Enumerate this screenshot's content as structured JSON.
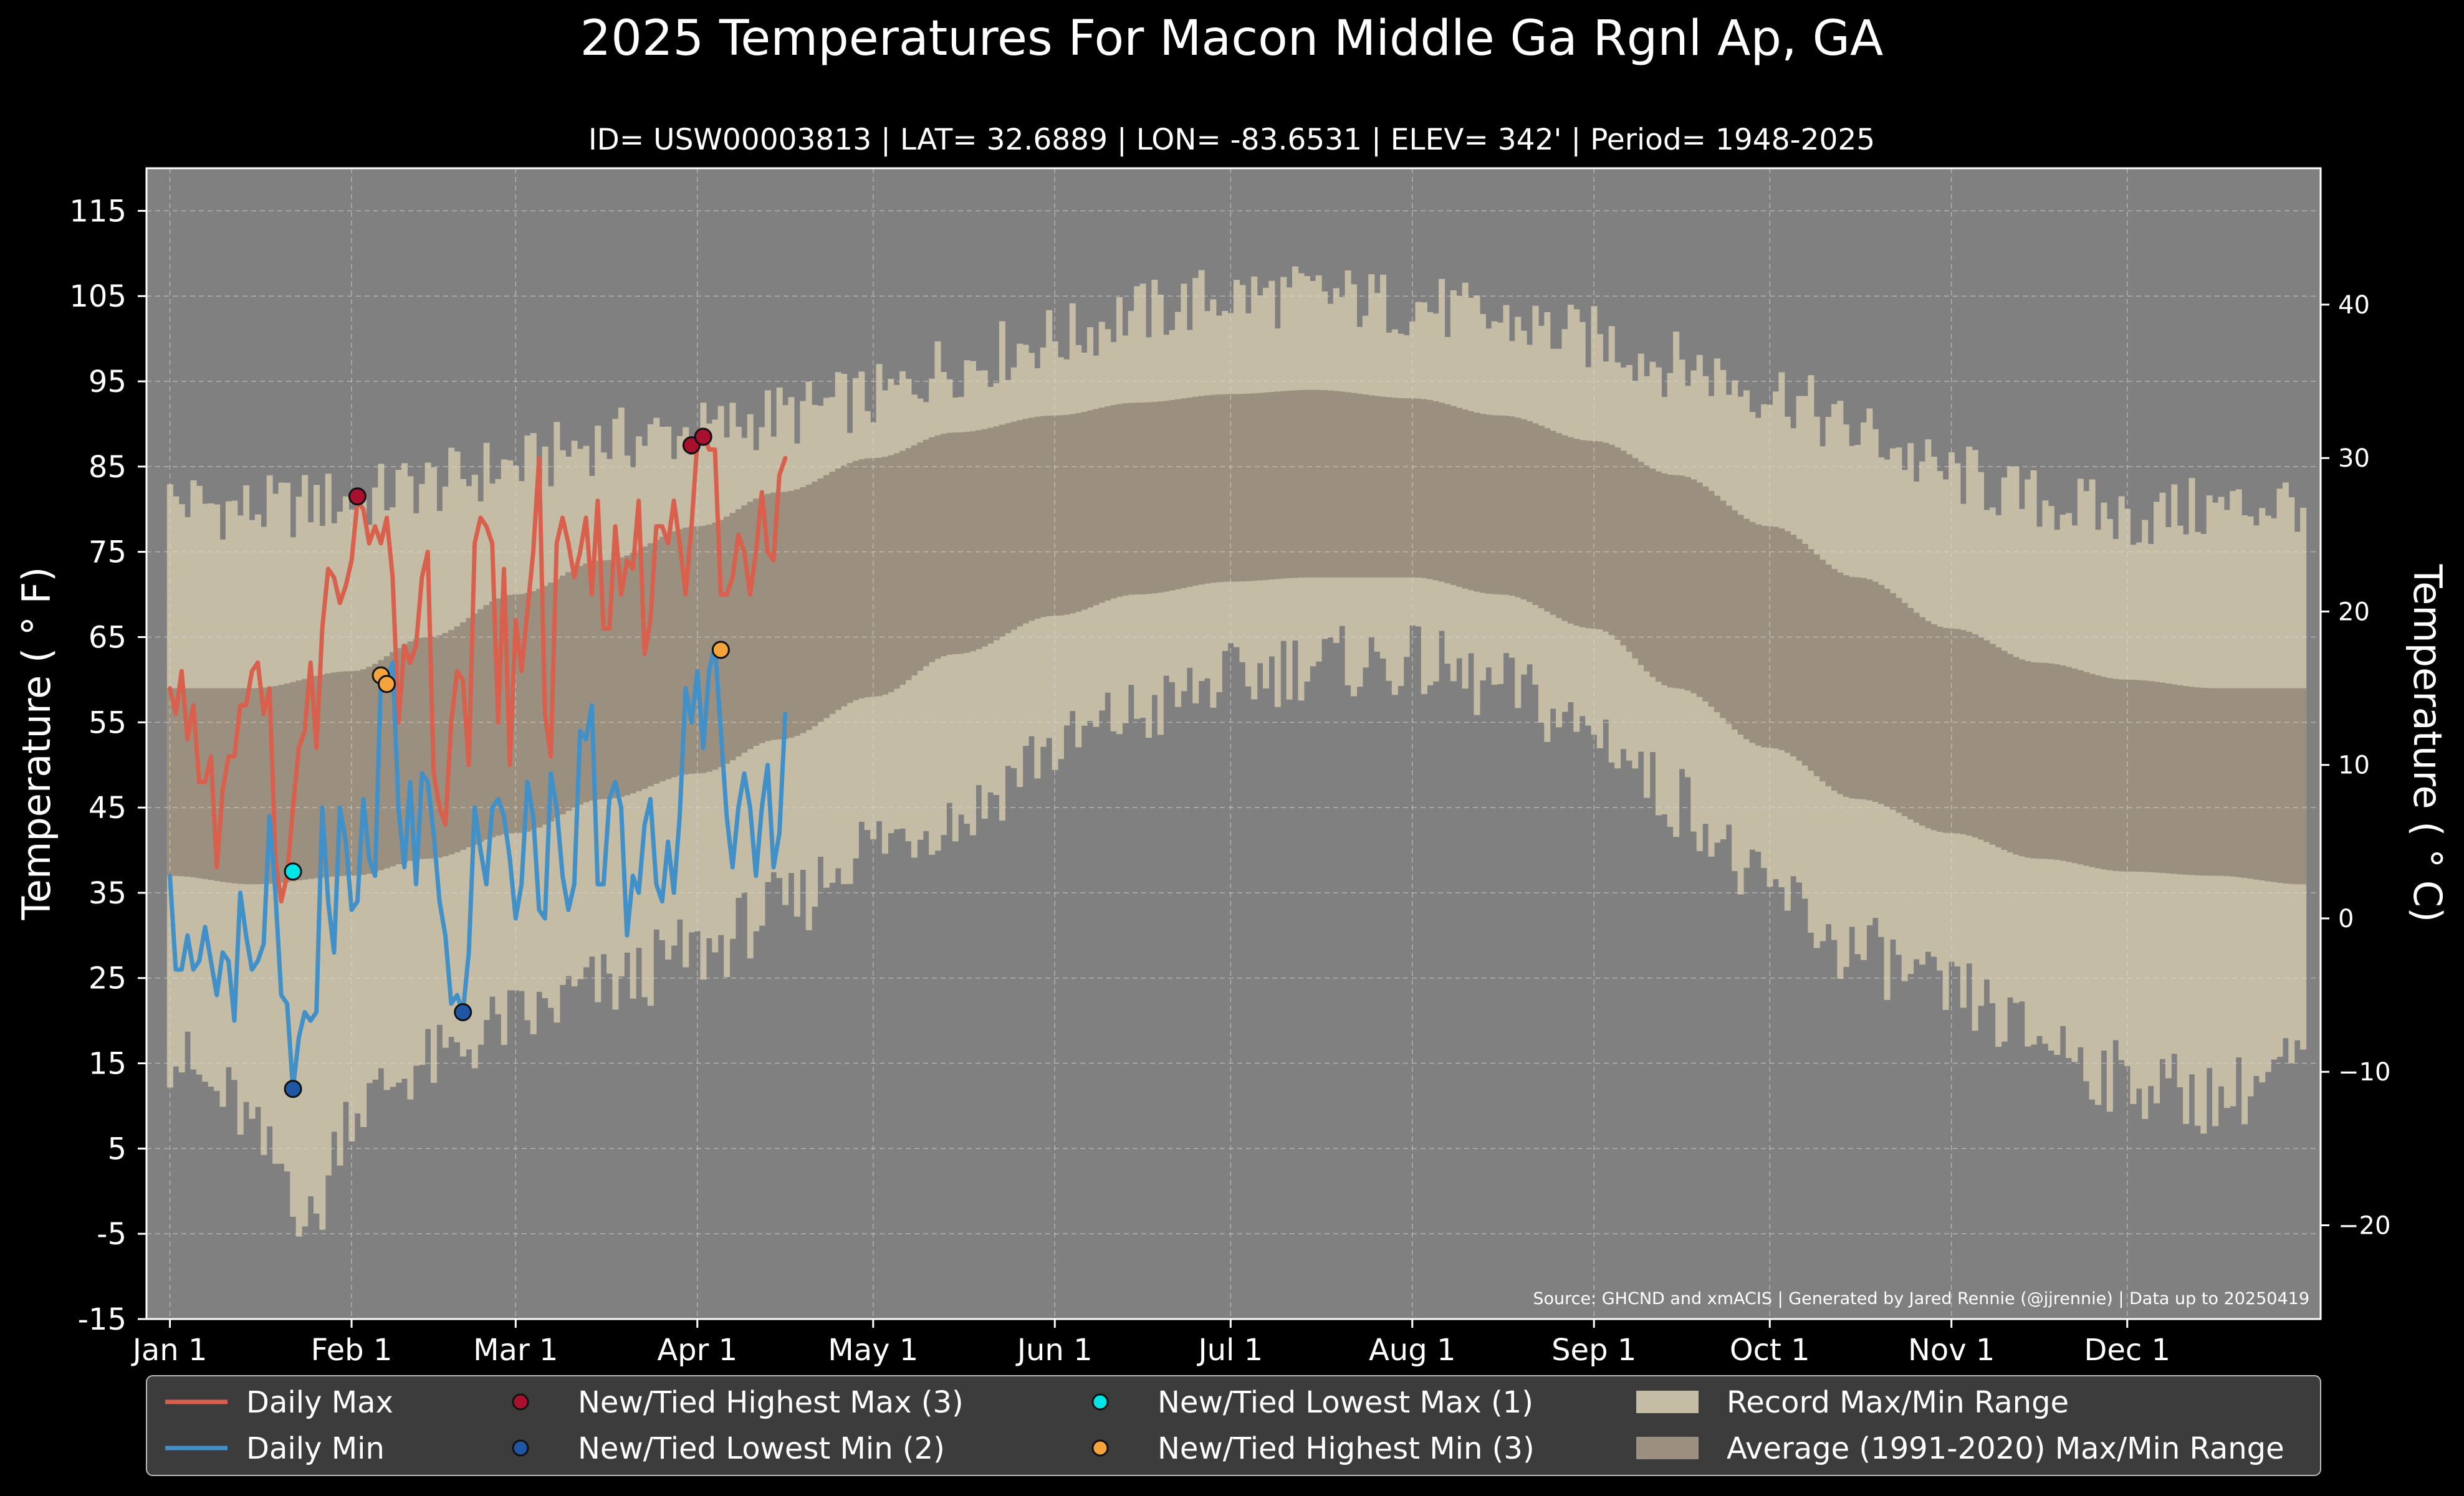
{
  "chart_data": {
    "type": "line",
    "title": "2025 Temperatures For Macon Middle Ga Rgnl Ap, GA",
    "subtitle": "ID= USW00003813 | LAT= 32.6889 | LON= -83.6531 | ELEV= 342' | Period= 1948-2025",
    "ylabel_left": "Temperature ($^\\circ$F)",
    "ylabel_left_text": "Temperature ( ° F)",
    "ylabel_right_text": "Temperature ( ° C)",
    "source_note": "Source: GHCND and xmACIS | Generated by Jared Rennie (@jjrennie) | Data up to 20250419",
    "ylim_f": [
      -15,
      120
    ],
    "yticks_f": [
      -15,
      -5,
      5,
      15,
      25,
      35,
      45,
      55,
      65,
      75,
      85,
      95,
      105,
      115
    ],
    "yticks_c": [
      -20,
      -10,
      0,
      10,
      20,
      30,
      40
    ],
    "xlim_day": [
      -3,
      368
    ],
    "xticks": [
      {
        "day": 1,
        "label": "Jan 1"
      },
      {
        "day": 32,
        "label": "Feb 1"
      },
      {
        "day": 60,
        "label": "Mar 1"
      },
      {
        "day": 91,
        "label": "Apr 1"
      },
      {
        "day": 121,
        "label": "May 1"
      },
      {
        "day": 152,
        "label": "Jun 1"
      },
      {
        "day": 182,
        "label": "Jul 1"
      },
      {
        "day": 213,
        "label": "Aug 1"
      },
      {
        "day": 244,
        "label": "Sep 1"
      },
      {
        "day": 274,
        "label": "Oct 1"
      },
      {
        "day": 305,
        "label": "Nov 1"
      },
      {
        "day": 335,
        "label": "Dec 1"
      }
    ],
    "grid": true,
    "legend_position": "bottom",
    "colors": {
      "background": "#000000",
      "plot_bg": "#808080",
      "record_band": "#c4bca4",
      "normal_band": "#9b9080",
      "daily_max": "#d9604c",
      "daily_min": "#4190c8",
      "rec_high_max": "#a8102e",
      "rec_low_min": "#1f57a5",
      "rec_low_max": "#00e6e6",
      "rec_high_min": "#f4a43a",
      "legend_bg": "#3c3c3c"
    },
    "record_max_anchors": [
      [
        1,
        81
      ],
      [
        15,
        80
      ],
      [
        32,
        81
      ],
      [
        45,
        83
      ],
      [
        60,
        85
      ],
      [
        75,
        88
      ],
      [
        91,
        89
      ],
      [
        105,
        91
      ],
      [
        121,
        93
      ],
      [
        135,
        97
      ],
      [
        152,
        100
      ],
      [
        166,
        103
      ],
      [
        182,
        105
      ],
      [
        196,
        105
      ],
      [
        213,
        104
      ],
      [
        228,
        102
      ],
      [
        244,
        100
      ],
      [
        258,
        97
      ],
      [
        274,
        94
      ],
      [
        289,
        89
      ],
      [
        305,
        84
      ],
      [
        320,
        81
      ],
      [
        335,
        79
      ],
      [
        350,
        80
      ],
      [
        365,
        81
      ]
    ],
    "record_min_anchors": [
      [
        1,
        16
      ],
      [
        10,
        11
      ],
      [
        20,
        3
      ],
      [
        25,
        -4
      ],
      [
        32,
        10
      ],
      [
        45,
        15
      ],
      [
        60,
        20
      ],
      [
        75,
        24
      ],
      [
        91,
        28
      ],
      [
        105,
        33
      ],
      [
        121,
        41
      ],
      [
        135,
        44
      ],
      [
        152,
        52
      ],
      [
        166,
        56
      ],
      [
        182,
        60
      ],
      [
        196,
        62
      ],
      [
        213,
        62
      ],
      [
        228,
        59
      ],
      [
        244,
        54
      ],
      [
        258,
        46
      ],
      [
        274,
        35
      ],
      [
        289,
        28
      ],
      [
        305,
        23
      ],
      [
        320,
        18
      ],
      [
        335,
        13
      ],
      [
        350,
        11
      ],
      [
        365,
        15
      ]
    ],
    "normal_max_anchors": [
      [
        1,
        59
      ],
      [
        15,
        59
      ],
      [
        32,
        61
      ],
      [
        45,
        65
      ],
      [
        60,
        70
      ],
      [
        75,
        74
      ],
      [
        91,
        78
      ],
      [
        105,
        82
      ],
      [
        121,
        86
      ],
      [
        135,
        89
      ],
      [
        152,
        91
      ],
      [
        166,
        92.5
      ],
      [
        182,
        93.5
      ],
      [
        196,
        94
      ],
      [
        213,
        93
      ],
      [
        228,
        91
      ],
      [
        244,
        88
      ],
      [
        258,
        84
      ],
      [
        274,
        78
      ],
      [
        289,
        72
      ],
      [
        305,
        66
      ],
      [
        320,
        62
      ],
      [
        335,
        60
      ],
      [
        350,
        59
      ],
      [
        365,
        59
      ]
    ],
    "normal_min_anchors": [
      [
        1,
        37
      ],
      [
        15,
        36
      ],
      [
        32,
        37
      ],
      [
        45,
        39
      ],
      [
        60,
        42
      ],
      [
        75,
        46
      ],
      [
        91,
        49
      ],
      [
        105,
        53
      ],
      [
        121,
        58
      ],
      [
        135,
        63
      ],
      [
        152,
        67.5
      ],
      [
        166,
        70
      ],
      [
        182,
        71.5
      ],
      [
        196,
        72
      ],
      [
        213,
        72
      ],
      [
        228,
        70
      ],
      [
        244,
        66
      ],
      [
        258,
        59
      ],
      [
        274,
        52
      ],
      [
        289,
        46
      ],
      [
        305,
        42
      ],
      [
        320,
        39
      ],
      [
        335,
        37.5
      ],
      [
        350,
        37
      ],
      [
        365,
        36
      ]
    ],
    "series": [
      {
        "name": "Daily Max",
        "color": "#d9604c",
        "start_day": 1,
        "values": [
          59,
          56,
          61,
          53,
          57,
          48,
          48,
          51,
          38,
          47,
          51,
          51,
          57,
          57,
          61,
          62,
          56,
          59,
          39,
          34,
          37,
          45,
          52,
          54,
          62,
          52,
          66,
          73,
          72,
          69,
          71,
          74,
          81,
          80,
          76,
          78,
          76,
          79,
          72,
          55,
          64,
          62,
          64,
          72,
          75,
          49,
          45,
          43,
          55,
          61,
          60,
          50,
          76,
          79,
          78,
          76,
          55,
          73,
          50,
          67,
          61,
          68,
          75,
          86,
          56,
          51,
          76,
          79,
          76,
          72,
          75,
          79,
          70,
          81,
          66,
          66,
          78,
          70,
          74,
          73,
          81,
          63,
          67,
          78,
          78,
          76,
          81,
          76,
          70,
          78,
          88,
          89,
          87,
          87,
          70,
          70,
          72,
          77,
          75,
          70,
          75,
          82,
          75,
          74,
          84,
          86
        ]
      },
      {
        "name": "Daily Min",
        "color": "#4190c8",
        "start_day": 1,
        "values": [
          37,
          26,
          26,
          30,
          26,
          27,
          31,
          27,
          23,
          28,
          27,
          20,
          35,
          30,
          26,
          27,
          29,
          44,
          35,
          23,
          22,
          12,
          18,
          21,
          20,
          21,
          45,
          34,
          28,
          45,
          41,
          33,
          34,
          46,
          39,
          37,
          60,
          60,
          62,
          45,
          38,
          48,
          36,
          49,
          48,
          42,
          34,
          30,
          22,
          23,
          21,
          28,
          45,
          40,
          36,
          45,
          46,
          44,
          39,
          32,
          36,
          48,
          44,
          33,
          32,
          49,
          45,
          37,
          33,
          36,
          54,
          53,
          57,
          36,
          36,
          46,
          48,
          45,
          30,
          37,
          35,
          43,
          46,
          36,
          34,
          41,
          35,
          44,
          59,
          55,
          61,
          52,
          61,
          64,
          54,
          44,
          38,
          45,
          49,
          45,
          37,
          45,
          50,
          38,
          42,
          56
        ]
      }
    ],
    "record_points": [
      {
        "name": "New/Tied Highest Max (3)",
        "color": "#a8102e",
        "points": [
          [
            33,
            81.5
          ],
          [
            90,
            87.5
          ],
          [
            92,
            88.5
          ]
        ]
      },
      {
        "name": "New/Tied Lowest Min (2)",
        "color": "#1f57a5",
        "points": [
          [
            22,
            12
          ],
          [
            51,
            21
          ]
        ]
      },
      {
        "name": "New/Tied Lowest Max (1)",
        "color": "#00e6e6",
        "points": [
          [
            22,
            37.5
          ]
        ]
      },
      {
        "name": "New/Tied Highest Min (3)",
        "color": "#f4a43a",
        "points": [
          [
            37,
            60.5
          ],
          [
            38,
            59.5
          ],
          [
            95,
            63.5
          ]
        ]
      }
    ],
    "legend": [
      {
        "label": "Daily Max",
        "kind": "line",
        "color": "#d9604c"
      },
      {
        "label": "Daily Min",
        "kind": "line",
        "color": "#4190c8"
      },
      {
        "label": "New/Tied Highest Max (3)",
        "kind": "dot",
        "color": "#a8102e"
      },
      {
        "label": "New/Tied Lowest Min (2)",
        "kind": "dot",
        "color": "#1f57a5"
      },
      {
        "label": "New/Tied Lowest Max (1)",
        "kind": "dot",
        "color": "#00e6e6"
      },
      {
        "label": "New/Tied Highest Min (3)",
        "kind": "dot",
        "color": "#f4a43a"
      },
      {
        "label": "Record Max/Min Range",
        "kind": "patch",
        "color": "#c4bca4"
      },
      {
        "label": "Average (1991-2020) Max/Min Range",
        "kind": "patch",
        "color": "#9b9080"
      }
    ]
  }
}
